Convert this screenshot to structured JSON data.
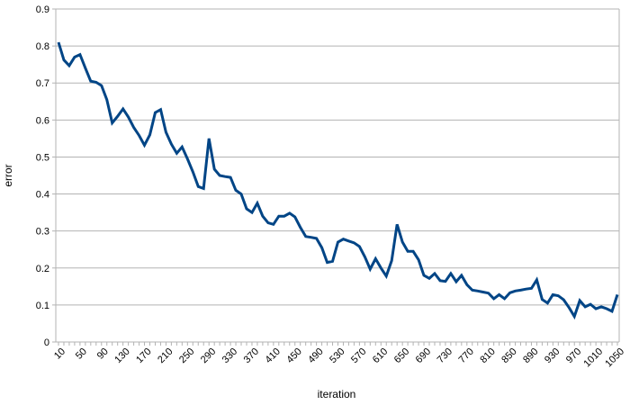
{
  "chart_data": {
    "type": "line",
    "title": "",
    "xlabel": "iteration",
    "ylabel": "error",
    "xlim": [
      10,
      1050
    ],
    "ylim": [
      0,
      0.9
    ],
    "grid": true,
    "legend": "none",
    "line_width": 3,
    "colors": {
      "series": "#004586",
      "grid": "#b3b3b3",
      "axis": "#b3b3b3",
      "text": "#000000",
      "background": "#ffffff"
    },
    "x": [
      10,
      20,
      30,
      40,
      50,
      60,
      70,
      80,
      90,
      100,
      110,
      120,
      130,
      140,
      150,
      160,
      170,
      180,
      190,
      200,
      210,
      220,
      230,
      240,
      250,
      260,
      270,
      280,
      290,
      300,
      310,
      320,
      330,
      340,
      350,
      360,
      370,
      380,
      390,
      400,
      410,
      420,
      430,
      440,
      450,
      460,
      470,
      480,
      490,
      500,
      510,
      520,
      530,
      540,
      550,
      560,
      570,
      580,
      590,
      600,
      610,
      620,
      630,
      640,
      650,
      660,
      670,
      680,
      690,
      700,
      710,
      720,
      730,
      740,
      750,
      760,
      770,
      780,
      790,
      800,
      810,
      820,
      830,
      840,
      850,
      860,
      870,
      880,
      890,
      900,
      910,
      920,
      930,
      940,
      950,
      960,
      970,
      980,
      990,
      1000,
      1010,
      1020,
      1030,
      1040,
      1050
    ],
    "y": [
      0.81,
      0.762,
      0.747,
      0.77,
      0.777,
      0.74,
      0.705,
      0.702,
      0.693,
      0.655,
      0.592,
      0.61,
      0.63,
      0.608,
      0.58,
      0.558,
      0.532,
      0.56,
      0.62,
      0.628,
      0.567,
      0.535,
      0.51,
      0.527,
      0.495,
      0.46,
      0.42,
      0.415,
      0.55,
      0.467,
      0.45,
      0.447,
      0.445,
      0.41,
      0.4,
      0.36,
      0.35,
      0.375,
      0.34,
      0.322,
      0.318,
      0.34,
      0.34,
      0.348,
      0.338,
      0.31,
      0.285,
      0.283,
      0.28,
      0.255,
      0.215,
      0.218,
      0.27,
      0.278,
      0.273,
      0.268,
      0.258,
      0.23,
      0.197,
      0.225,
      0.2,
      0.178,
      0.22,
      0.318,
      0.27,
      0.245,
      0.245,
      0.222,
      0.18,
      0.172,
      0.185,
      0.166,
      0.164,
      0.185,
      0.163,
      0.18,
      0.155,
      0.14,
      0.138,
      0.135,
      0.132,
      0.117,
      0.128,
      0.117,
      0.133,
      0.138,
      0.14,
      0.143,
      0.145,
      0.168,
      0.115,
      0.105,
      0.128,
      0.125,
      0.114,
      0.093,
      0.069,
      0.112,
      0.095,
      0.102,
      0.09,
      0.095,
      0.09,
      0.083,
      0.128
    ],
    "x_ticks_labeled": [
      10,
      50,
      90,
      130,
      170,
      210,
      250,
      290,
      330,
      370,
      410,
      450,
      490,
      530,
      570,
      610,
      650,
      690,
      730,
      770,
      810,
      850,
      890,
      930,
      970,
      1010,
      1050
    ],
    "x_tick_labels": [
      "10",
      "50",
      "90",
      "130",
      "170",
      "210",
      "250",
      "290",
      "330",
      "370",
      "410",
      "450",
      "490",
      "530",
      "570",
      "610",
      "650",
      "690",
      "730",
      "770",
      "810",
      "850",
      "890",
      "930",
      "970",
      "1010",
      "1050"
    ],
    "x_minor_tick_step": 10,
    "y_ticks": [
      0,
      0.1,
      0.2,
      0.3,
      0.4,
      0.5,
      0.6,
      0.7,
      0.8,
      0.9
    ],
    "y_tick_labels": [
      "0",
      "0.1",
      "0.2",
      "0.3",
      "0.4",
      "0.5",
      "0.6",
      "0.7",
      "0.8",
      "0.9"
    ]
  }
}
